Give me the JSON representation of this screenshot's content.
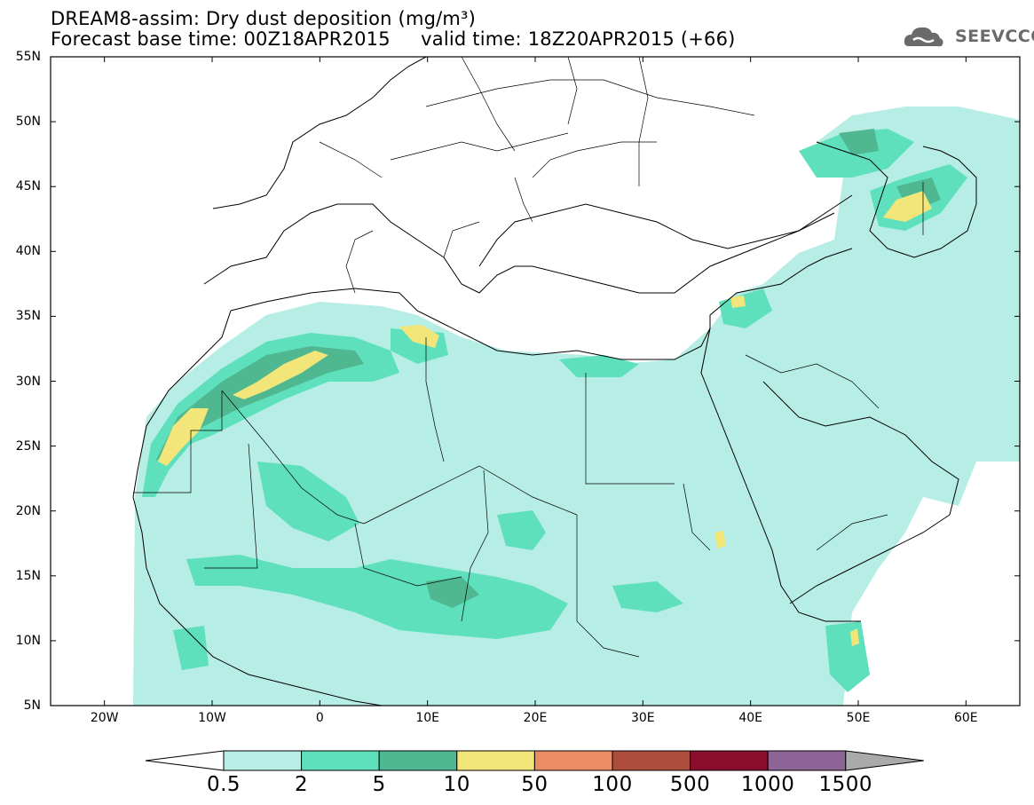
{
  "header": {
    "title_line1": "DREAM8-assim: Dry dust deposition (mg/m³)",
    "title_line2": "Forecast base time: 00Z18APR2015     valid time: 18Z20APR2015 (+66)",
    "logo_text": "SEEVCCC"
  },
  "map": {
    "region": "North Africa, Europe and Middle East",
    "lat_range": [
      5,
      55
    ],
    "lon_range": [
      -25,
      65
    ],
    "lat_labels": [
      "55N",
      "50N",
      "45N",
      "40N",
      "35N",
      "30N",
      "25N",
      "20N",
      "15N",
      "10N",
      "5N"
    ],
    "lon_labels": [
      "20W",
      "10W",
      "0",
      "10E",
      "20E",
      "30E",
      "40E",
      "50E",
      "60E"
    ]
  },
  "colorbar": {
    "labels": [
      "0.5",
      "2",
      "5",
      "10",
      "50",
      "100",
      "500",
      "1000",
      "1500"
    ],
    "colors": [
      "#b6ede5",
      "#5ee0bd",
      "#4fb890",
      "#f2e57a",
      "#eb8c66",
      "#ac4d3d",
      "#8a0d2e",
      "#8c6496"
    ],
    "under_color": "#ffffff",
    "over_color": "#aaaaaa"
  },
  "map_fill_colors": {
    "level1": "#b6ede5",
    "level2": "#5ee0bd",
    "level3": "#4fb890",
    "level4": "#f2e57a"
  }
}
